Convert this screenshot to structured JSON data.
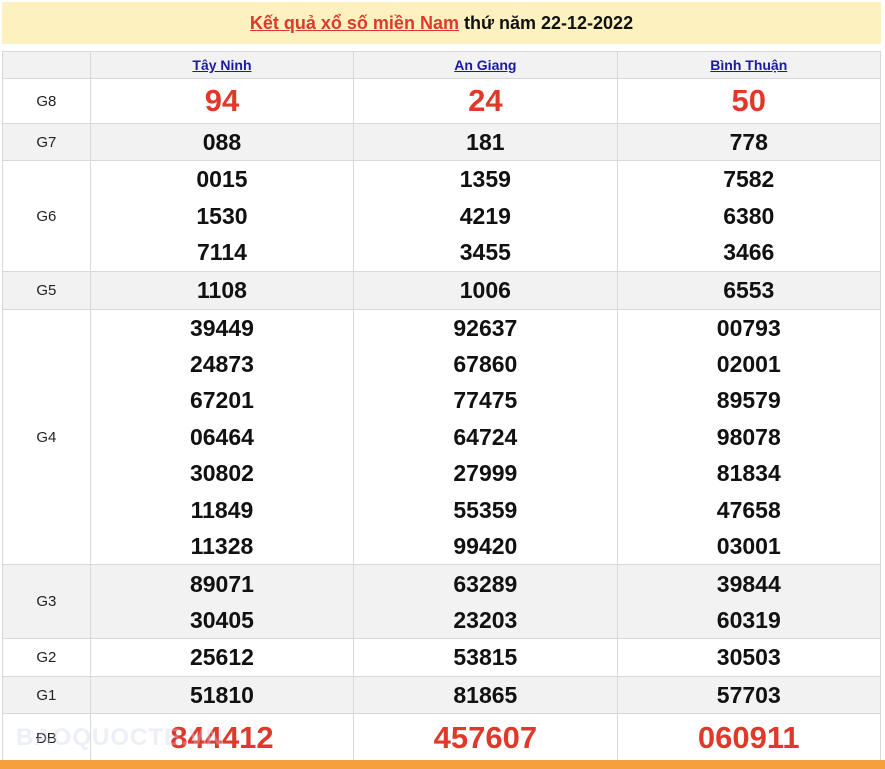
{
  "title": {
    "link": "Kết quả xổ số miền Nam",
    "rest": "thứ năm 22-12-2022"
  },
  "provinces": [
    "Tây Ninh",
    "An Giang",
    "Bình Thuận"
  ],
  "rows": [
    {
      "label": "G8",
      "values": [
        [
          "94"
        ],
        [
          "24"
        ],
        [
          "50"
        ]
      ]
    },
    {
      "label": "G7",
      "values": [
        [
          "088"
        ],
        [
          "181"
        ],
        [
          "778"
        ]
      ]
    },
    {
      "label": "G6",
      "values": [
        [
          "0015",
          "1530",
          "7114"
        ],
        [
          "1359",
          "4219",
          "3455"
        ],
        [
          "7582",
          "6380",
          "3466"
        ]
      ]
    },
    {
      "label": "G5",
      "values": [
        [
          "1108"
        ],
        [
          "1006"
        ],
        [
          "6553"
        ]
      ]
    },
    {
      "label": "G4",
      "values": [
        [
          "39449",
          "24873",
          "67201",
          "06464",
          "30802",
          "11849",
          "11328"
        ],
        [
          "92637",
          "67860",
          "77475",
          "64724",
          "27999",
          "55359",
          "99420"
        ],
        [
          "00793",
          "02001",
          "89579",
          "98078",
          "81834",
          "47658",
          "03001"
        ]
      ]
    },
    {
      "label": "G3",
      "values": [
        [
          "89071",
          "30405"
        ],
        [
          "63289",
          "23203"
        ],
        [
          "39844",
          "60319"
        ]
      ]
    },
    {
      "label": "G2",
      "values": [
        [
          "25612"
        ],
        [
          "53815"
        ],
        [
          "30503"
        ]
      ]
    },
    {
      "label": "G1",
      "values": [
        [
          "51810"
        ],
        [
          "81865"
        ],
        [
          "57703"
        ]
      ]
    },
    {
      "label": "ĐB",
      "values": [
        [
          "844412"
        ],
        [
          "457607"
        ],
        [
          "060911"
        ]
      ]
    }
  ],
  "watermark": "BAOQUOCTE.VN",
  "colors": {
    "accent": "#e0392b",
    "header_bg": "#fdf1bf",
    "bar": "#f4a03c"
  }
}
